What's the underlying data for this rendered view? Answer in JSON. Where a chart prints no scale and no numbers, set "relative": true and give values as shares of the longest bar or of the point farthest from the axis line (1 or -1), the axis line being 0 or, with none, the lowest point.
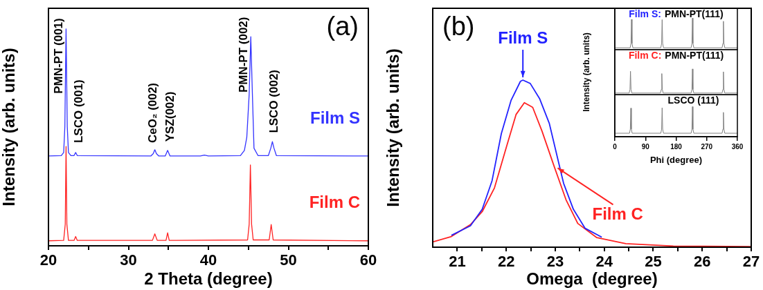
{
  "chart_data": [
    {
      "type": "line",
      "xlabel": "2 Theta (degree)",
      "ylabel": "Intensity (arb. units)",
      "relative": true,
      "xlim": [
        20,
        60
      ],
      "xticks": [
        20,
        {
          "value": 25,
          "label": null
        },
        30,
        {
          "value": 35,
          "label": null
        },
        40,
        {
          "value": 45,
          "label": null
        },
        50,
        {
          "value": 55,
          "label": null
        },
        60
      ],
      "annotations": [
        "(a)",
        "PMN-PT (001)",
        "LSCO (001)",
        "CeO₂ (002)",
        "YSZ(002)",
        "PMN-PT (002)",
        "LSCO (002)"
      ],
      "series": [
        {
          "name": "Film S",
          "color": "#3333ff",
          "x": [
            20,
            21.6,
            21.9,
            22.05,
            22.2,
            22.35,
            22.5,
            22.8,
            23.2,
            23.4,
            23.6,
            32.8,
            33.1,
            33.3,
            33.5,
            33.8,
            34.6,
            34.9,
            35.2,
            39.0,
            39.5,
            40.0,
            44.0,
            44.5,
            44.8,
            45.1,
            45.3,
            45.5,
            45.7,
            46.2,
            47.5,
            47.8,
            48.0,
            48.2,
            48.5,
            60
          ],
          "values": [
            0.414,
            0.416,
            0.43,
            0.55,
            1,
            0.55,
            0.43,
            0.416,
            0.416,
            0.43,
            0.416,
            0.414,
            0.425,
            0.443,
            0.425,
            0.414,
            0.414,
            0.44,
            0.414,
            0.414,
            0.418,
            0.414,
            0.416,
            0.44,
            0.5,
            0.7,
            0.964,
            0.7,
            0.45,
            0.416,
            0.416,
            0.45,
            0.48,
            0.45,
            0.416,
            0.414
          ]
        },
        {
          "name": "Film C",
          "color": "#ff2222",
          "x": [
            20,
            21.9,
            22.1,
            22.2,
            22.3,
            22.5,
            23.2,
            23.4,
            23.6,
            33.0,
            33.3,
            33.6,
            34.7,
            34.9,
            35.1,
            44.9,
            45.1,
            45.25,
            45.4,
            45.6,
            47.6,
            47.85,
            48.1,
            60
          ],
          "values": [
            0.023,
            0.025,
            0.1,
            0.458,
            0.1,
            0.025,
            0.025,
            0.043,
            0.025,
            0.025,
            0.055,
            0.025,
            0.025,
            0.06,
            0.025,
            0.027,
            0.1,
            0.373,
            0.1,
            0.027,
            0.027,
            0.098,
            0.027,
            0.023
          ]
        }
      ]
    },
    {
      "type": "line",
      "xlabel": "Omega  (degree)",
      "ylabel": "Intensity (arb. units)",
      "relative": true,
      "xlim": [
        20.5,
        27
      ],
      "xticks": [
        21,
        {
          "value": 21.5,
          "label": null
        },
        22,
        {
          "value": 22.5,
          "label": null
        },
        23,
        {
          "value": 23.5,
          "label": null
        },
        24,
        {
          "value": 24.5,
          "label": null
        },
        25,
        {
          "value": 25.5,
          "label": null
        },
        26,
        {
          "value": 26.5,
          "label": null
        },
        27
      ],
      "annotations": [
        "(b)"
      ],
      "series": [
        {
          "name": "Film S",
          "color": "#2222ff",
          "x": [
            20.88,
            21.27,
            21.51,
            21.71,
            21.9,
            22.1,
            22.29,
            22.34,
            22.49,
            22.68,
            22.88,
            23.02,
            23.17,
            23.37,
            23.61,
            23.95
          ],
          "values": [
            0.071,
            0.128,
            0.227,
            0.397,
            0.68,
            0.88,
            0.993,
            1,
            0.98,
            0.89,
            0.74,
            0.567,
            0.383,
            0.227,
            0.113,
            0.06
          ]
        },
        {
          "name": "Film C",
          "color": "#ff2222",
          "x": [
            20.5,
            20.88,
            21.27,
            21.51,
            21.76,
            22.0,
            22.2,
            22.37,
            22.54,
            22.73,
            22.98,
            23.22,
            23.46,
            23.85,
            24.44,
            25.41,
            27
          ],
          "values": [
            0.031,
            0.064,
            0.135,
            0.213,
            0.355,
            0.596,
            0.794,
            0.865,
            0.837,
            0.695,
            0.482,
            0.284,
            0.142,
            0.057,
            0.021,
            0.007,
            0.003
          ]
        }
      ]
    },
    {
      "type": "line",
      "relative": true,
      "xlim": [
        0,
        360
      ],
      "tick_labels": false,
      "annotations": [
        "Film S:",
        "PMN-PT(111)"
      ],
      "series": [
        {
          "color": "#808080",
          "x": [
            0,
            45,
            47.5,
            49,
            50.5,
            53,
            135,
            137.5,
            139,
            140.5,
            143,
            224,
            226.5,
            228,
            229.5,
            232,
            315,
            317.5,
            319,
            320.5,
            323,
            360
          ],
          "values": [
            0.06,
            0.06,
            0.2,
            0.96,
            0.2,
            0.06,
            0.06,
            0.2,
            0.95,
            0.2,
            0.06,
            0.06,
            0.2,
            1,
            0.2,
            0.06,
            0.06,
            0.2,
            0.9,
            0.2,
            0.06,
            0.06
          ]
        }
      ]
    },
    {
      "type": "line",
      "ylabel": "Intensity (arb. units)",
      "relative": true,
      "xlim": [
        0,
        360
      ],
      "tick_labels": false,
      "annotations": [
        "Film C:",
        "PMN-PT(111)"
      ],
      "series": [
        {
          "color": "#808080",
          "x": [
            0,
            42,
            44.5,
            46,
            47.5,
            50,
            134,
            136.5,
            138,
            139.5,
            142,
            224,
            226.5,
            228,
            229.5,
            232,
            315,
            317.5,
            319,
            320.5,
            323,
            360
          ],
          "values": [
            0.06,
            0.06,
            0.2,
            0.91,
            0.2,
            0.06,
            0.06,
            0.2,
            0.82,
            0.2,
            0.06,
            0.06,
            0.2,
            1,
            0.2,
            0.06,
            0.06,
            0.2,
            0.89,
            0.2,
            0.06,
            0.06
          ]
        }
      ]
    },
    {
      "type": "line",
      "xlabel": "Phi (degree)",
      "relative": true,
      "xlim": [
        0,
        360
      ],
      "xticks": [
        0,
        90,
        180,
        270,
        360
      ],
      "tick_labels": "x",
      "annotations": [
        "LSCO (111)"
      ],
      "series": [
        {
          "color": "#808080",
          "x": [
            0,
            43,
            45.5,
            47,
            48.5,
            51,
            135,
            137.5,
            139,
            140.5,
            143,
            224,
            226.5,
            228,
            229.5,
            232,
            315,
            317.5,
            319,
            320.5,
            323,
            360
          ],
          "values": [
            0.115,
            0.115,
            0.25,
            0.95,
            0.25,
            0.115,
            0.115,
            0.25,
            0.96,
            0.25,
            0.115,
            0.115,
            0.25,
            1,
            0.25,
            0.115,
            0.115,
            0.25,
            0.81,
            0.25,
            0.115,
            0.115
          ]
        }
      ]
    }
  ]
}
